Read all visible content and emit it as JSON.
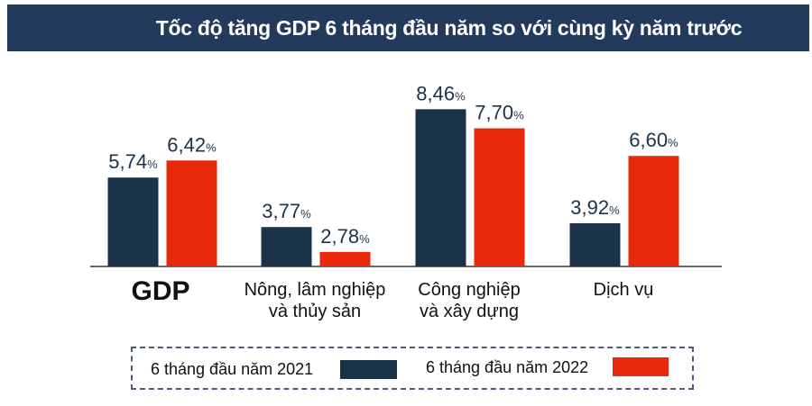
{
  "chart_data": {
    "type": "bar",
    "title": "Tốc độ tăng GDP 6 tháng đầu năm so với cùng kỳ năm trước",
    "categories": [
      "GDP",
      "Nông, lâm nghiệp\nvà thủy sản",
      "Công nghiệp\nvà xây dựng",
      "Dịch vụ"
    ],
    "category_lines": [
      [
        "GDP"
      ],
      [
        "Nông, lâm nghiệp",
        "và thủy sản"
      ],
      [
        "Công nghiệp",
        "và xây dựng"
      ],
      [
        "Dịch vụ"
      ]
    ],
    "series": [
      {
        "name": "6 tháng đầu năm 2021",
        "color": "#1b3349",
        "values": [
          5.74,
          3.77,
          8.46,
          3.92
        ],
        "labels": [
          "5,74",
          "3,77",
          "8,46",
          "3,92"
        ]
      },
      {
        "name": "6 tháng đầu năm 2022",
        "color": "#e8290b",
        "values": [
          6.42,
          2.78,
          7.7,
          6.6
        ],
        "labels": [
          "6,42",
          "2,78",
          "7,70",
          "6,60"
        ]
      }
    ],
    "unit": "%",
    "ylim": [
      2.2,
      8.5
    ],
    "grid": false,
    "legend": "bottom",
    "title_bar_color": "#223a5c"
  }
}
